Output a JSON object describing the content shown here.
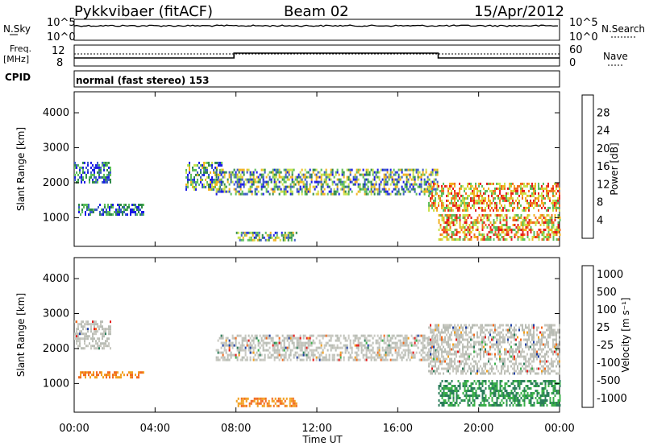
{
  "header": {
    "station": "Pykkvibaer (fitACF)",
    "beam": "Beam 02",
    "date": "15/Apr/2012"
  },
  "noise_panel": {
    "left_label": "N.Sky",
    "right_label": "N.Search",
    "left_ticks": [
      "10^5",
      "10^0"
    ],
    "right_ticks": [
      "10^5",
      "10^0"
    ]
  },
  "freq_panel": {
    "left_label_line1": "Freq.",
    "left_label_line2": "[MHz]",
    "left_ticks": [
      "12",
      "8"
    ],
    "right_label": "Nave",
    "right_ticks": [
      "60",
      "0"
    ]
  },
  "cpid": {
    "label": "CPID",
    "text": "normal (fast stereo) 153"
  },
  "colors": {
    "power_scale": [
      "#1a1ae6",
      "#3a5bc4",
      "#2f8a4a",
      "#5bbd5b",
      "#c9e24a",
      "#f2b21e",
      "#f26a1e",
      "#e61a1a"
    ],
    "velocity_scale": [
      "#1f3fa6",
      "#2a7d5a",
      "#3bb04a",
      "#b9bdb5",
      "#c8c8c0",
      "#f2a020",
      "#f26a1e",
      "#e61a1a"
    ]
  },
  "chart_data": [
    {
      "type": "heatmap",
      "title": "",
      "xlabel": "Time UT",
      "ylabel": "Slant Range [km]",
      "x_ticks": [
        "00:00",
        "04:00",
        "08:00",
        "12:00",
        "16:00",
        "20:00",
        "00:00"
      ],
      "y_ticks": [
        1000,
        2000,
        3000,
        4000
      ],
      "xlim_hours": [
        0,
        24
      ],
      "ylim_km": [
        180,
        4600
      ],
      "colorbar": {
        "label": "Power [dB]",
        "ticks": [
          "28",
          "24",
          "20",
          "16",
          "12",
          "8",
          "4"
        ]
      },
      "regions": [
        {
          "t0": 0.0,
          "t1": 1.8,
          "r0": 2000,
          "r1": 2600,
          "level": "mixed-low"
        },
        {
          "t0": 0.2,
          "t1": 3.4,
          "r0": 1100,
          "r1": 1400,
          "level": "mixed-low"
        },
        {
          "t0": 5.5,
          "t1": 7.3,
          "r0": 1800,
          "r1": 2600,
          "level": "mixed-mid"
        },
        {
          "t0": 7.0,
          "t1": 18.0,
          "r0": 1700,
          "r1": 2400,
          "level": "mixed-mid"
        },
        {
          "t0": 8.0,
          "t1": 11.0,
          "r0": 350,
          "r1": 600,
          "level": "mixed-mid"
        },
        {
          "t0": 17.5,
          "t1": 24.0,
          "r0": 1200,
          "r1": 2000,
          "level": "high"
        },
        {
          "t0": 18.0,
          "t1": 24.0,
          "r0": 400,
          "r1": 1100,
          "level": "high"
        }
      ]
    },
    {
      "type": "heatmap",
      "title": "",
      "xlabel": "Time UT",
      "ylabel": "Slant Range [km]",
      "x_ticks": [
        "00:00",
        "04:00",
        "08:00",
        "12:00",
        "16:00",
        "20:00",
        "00:00"
      ],
      "y_ticks": [
        1000,
        2000,
        3000,
        4000
      ],
      "xlim_hours": [
        0,
        24
      ],
      "ylim_km": [
        180,
        4600
      ],
      "colorbar": {
        "label": "Velocity [m s⁻¹]",
        "ticks": [
          "1000",
          "500",
          "100",
          "25",
          "-25",
          "-100",
          "-500",
          "-1000"
        ]
      },
      "regions": [
        {
          "t0": 0.0,
          "t1": 1.8,
          "r0": 2000,
          "r1": 2800,
          "level": "near-zero"
        },
        {
          "t0": 0.2,
          "t1": 3.4,
          "r0": 1150,
          "r1": 1350,
          "level": "negative"
        },
        {
          "t0": 7.0,
          "t1": 18.0,
          "r0": 1700,
          "r1": 2400,
          "level": "near-zero"
        },
        {
          "t0": 8.0,
          "t1": 11.0,
          "r0": 350,
          "r1": 600,
          "level": "negative"
        },
        {
          "t0": 17.5,
          "t1": 24.0,
          "r0": 1300,
          "r1": 2700,
          "level": "near-zero"
        },
        {
          "t0": 18.0,
          "t1": 24.0,
          "r0": 400,
          "r1": 1100,
          "level": "positive"
        }
      ]
    }
  ]
}
